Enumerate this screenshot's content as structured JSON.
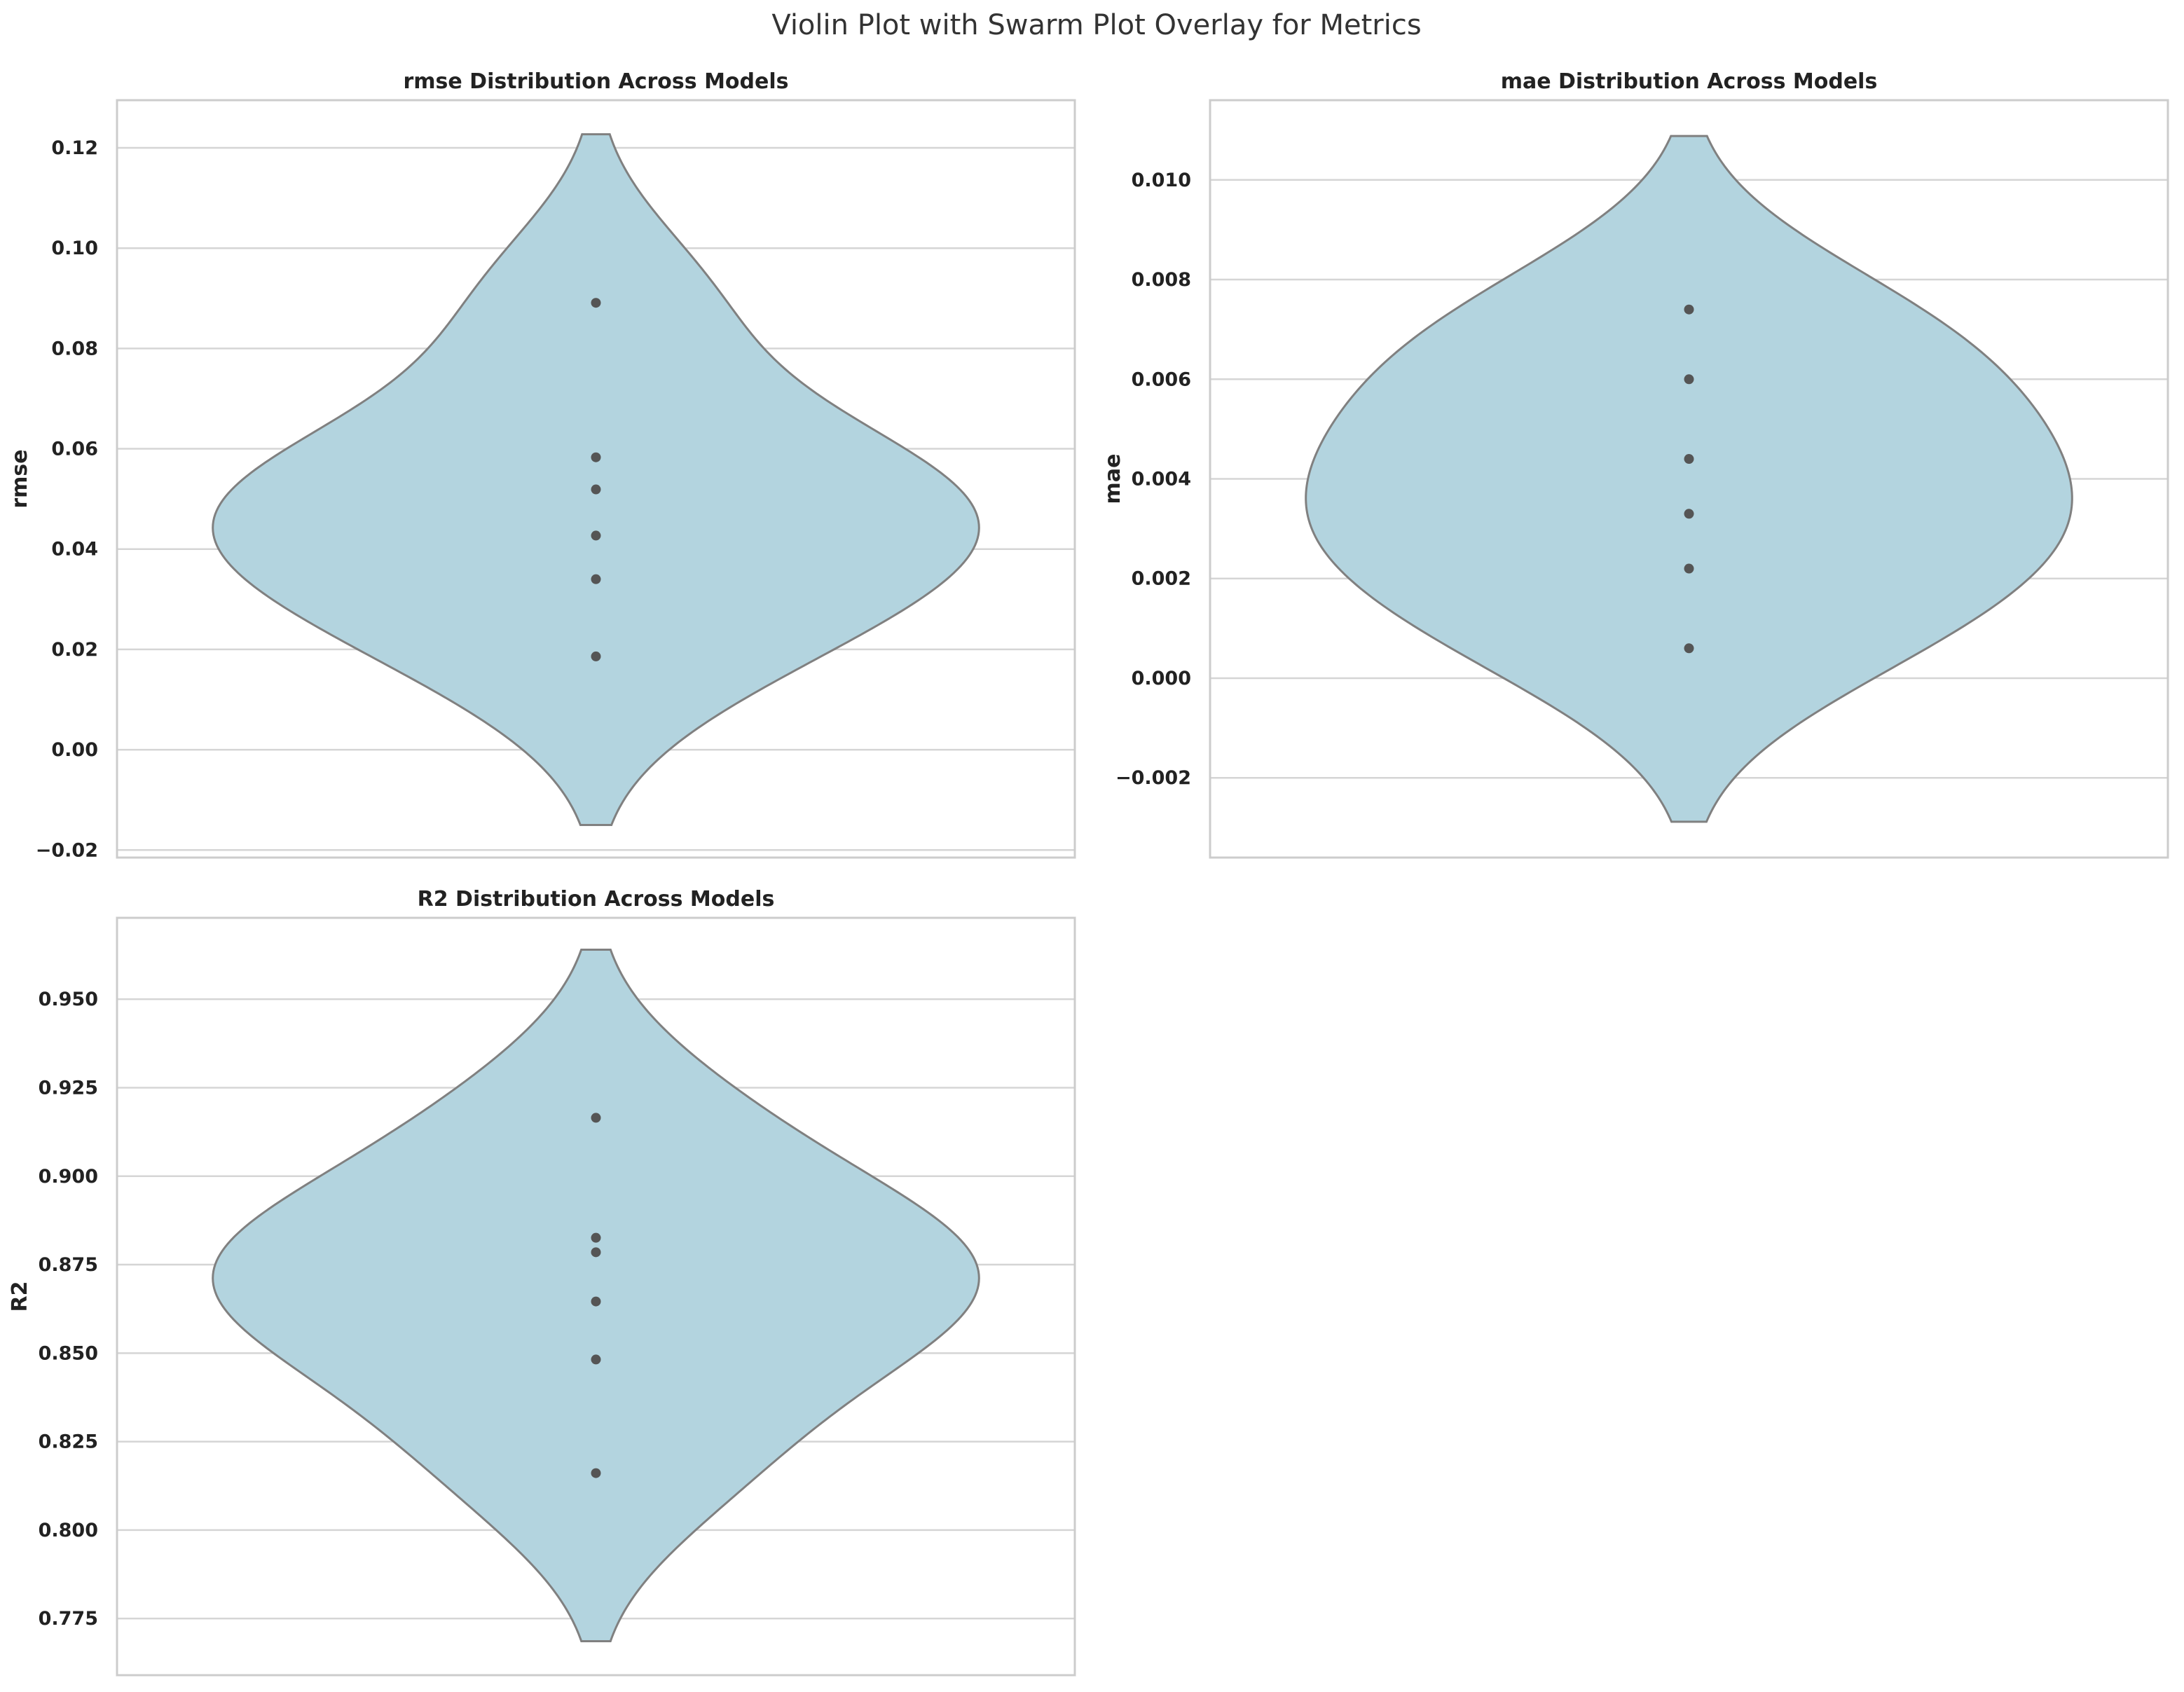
{
  "figure": {
    "suptitle": "Violin Plot with Swarm Plot Overlay for Metrics"
  },
  "colors": {
    "violin_fill": "#b3d4df",
    "violin_edge": "#808080",
    "point": "#555555",
    "grid": "#d5d5d5",
    "frame": "#cccccc"
  },
  "chart_data": [
    {
      "type": "violin",
      "title": "rmse Distribution Across Models",
      "xlabel": "",
      "ylabel": "rmse",
      "ylim": [
        -0.0215,
        0.1295
      ],
      "yticks": [
        -0.02,
        0.0,
        0.02,
        0.04,
        0.06,
        0.08,
        0.1,
        0.12
      ],
      "ytick_labels": [
        "−0.02",
        "0.00",
        "0.02",
        "0.04",
        "0.06",
        "0.08",
        "0.10",
        "0.12"
      ],
      "grid": true,
      "points": [
        0.0186,
        0.034,
        0.0427,
        0.0519,
        0.0583,
        0.0891
      ]
    },
    {
      "type": "violin",
      "title": "mae Distribution Across Models",
      "xlabel": "",
      "ylabel": "mae",
      "ylim": [
        -0.0036,
        0.0116
      ],
      "yticks": [
        -0.002,
        0.0,
        0.002,
        0.004,
        0.006,
        0.008,
        0.01
      ],
      "ytick_labels": [
        "−0.002",
        "0.000",
        "0.002",
        "0.004",
        "0.006",
        "0.008",
        "0.010"
      ],
      "grid": true,
      "points": [
        0.0006,
        0.0022,
        0.0033,
        0.0044,
        0.006,
        0.0074
      ]
    },
    {
      "type": "violin",
      "title": "R2 Distribution Across Models",
      "xlabel": "",
      "ylabel": "R2",
      "ylim": [
        0.759,
        0.973
      ],
      "yticks": [
        0.775,
        0.8,
        0.825,
        0.85,
        0.875,
        0.9,
        0.925,
        0.95
      ],
      "ytick_labels": [
        "0.775",
        "0.800",
        "0.825",
        "0.850",
        "0.875",
        "0.900",
        "0.925",
        "0.950"
      ],
      "grid": true,
      "points": [
        0.8161,
        0.8482,
        0.8646,
        0.8785,
        0.8826,
        0.9165
      ]
    }
  ]
}
